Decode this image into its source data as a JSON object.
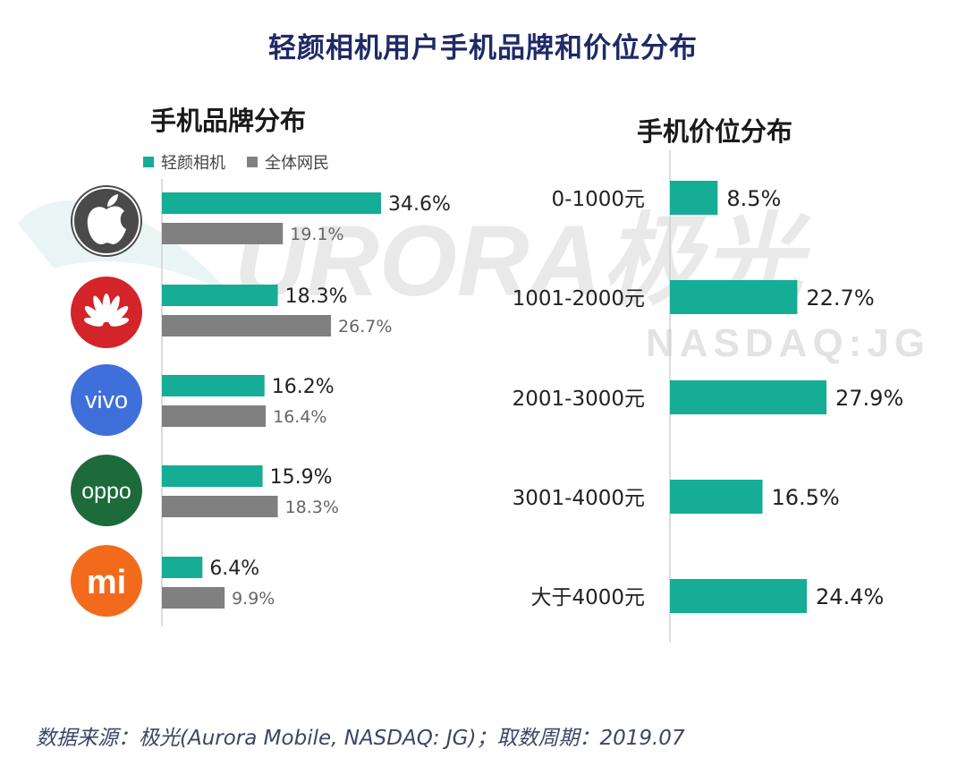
{
  "title": "轻颜相机用户手机品牌和价位分布",
  "colors": {
    "teal": "#15ad95",
    "gray": "#808080",
    "title": "#1f2a66"
  },
  "watermark": {
    "text": "URORA极光",
    "sub": "NASDAQ:JG"
  },
  "source": "数据来源：极光(Aurora Mobile, NASDAQ: JG)；取数周期：2019.07",
  "chart_data": [
    {
      "type": "bar",
      "orientation": "horizontal",
      "title": "手机品牌分布",
      "categories": [
        "apple",
        "huawei",
        "vivo",
        "oppo",
        "mi"
      ],
      "category_icons": [
        "apple-logo-icon",
        "huawei-logo-icon",
        "vivo-logo-icon",
        "oppo-logo-icon",
        "mi-logo-icon"
      ],
      "brand_logo_text": {
        "vivo": "vivo",
        "oppo": "oppo",
        "mi": "mi"
      },
      "series": [
        {
          "name": "轻颜相机",
          "color": "#15ad95",
          "values": [
            34.6,
            18.3,
            16.2,
            15.9,
            6.4
          ],
          "labels": [
            "34.6%",
            "18.3%",
            "16.2%",
            "15.9%",
            "6.4%"
          ]
        },
        {
          "name": "全体网民",
          "color": "#808080",
          "values": [
            19.1,
            26.7,
            16.4,
            18.3,
            9.9
          ],
          "labels": [
            "19.1%",
            "26.7%",
            "16.4%",
            "18.3%",
            "9.9%"
          ]
        }
      ],
      "legend": "top-left",
      "xlim": [
        0,
        40
      ]
    },
    {
      "type": "bar",
      "orientation": "horizontal",
      "title": "手机价位分布",
      "categories": [
        "0-1000元",
        "1001-2000元",
        "2001-3000元",
        "3001-4000元",
        "大于4000元"
      ],
      "values": [
        8.5,
        22.7,
        27.9,
        16.5,
        24.4
      ],
      "labels": [
        "8.5%",
        "22.7%",
        "27.9%",
        "16.5%",
        "24.4%"
      ],
      "color": "#15ad95",
      "xlim": [
        0,
        30
      ]
    }
  ]
}
